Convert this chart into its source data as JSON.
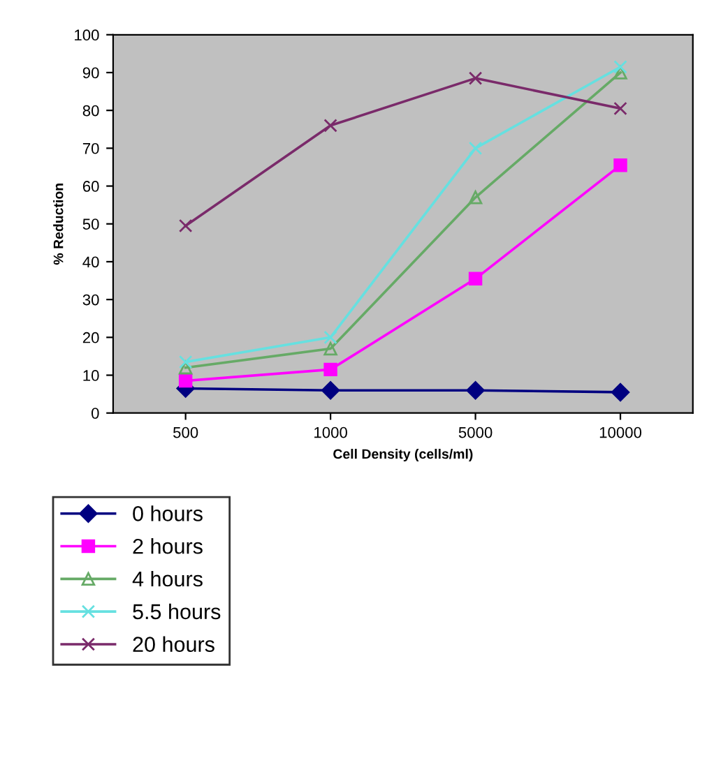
{
  "chart_data": {
    "type": "line",
    "xlabel": "Cell Density (cells/ml)",
    "ylabel": "% Reduction",
    "categories": [
      "500",
      "1000",
      "5000",
      "10000"
    ],
    "ylim": [
      0,
      100
    ],
    "yticks": [
      0,
      10,
      20,
      30,
      40,
      50,
      60,
      70,
      80,
      90,
      100
    ],
    "grid": false,
    "legend": "bottom left",
    "series": [
      {
        "name": "0 hours",
        "color": "#000080",
        "marker": "diamond",
        "values": [
          6.5,
          6,
          6,
          5.5
        ]
      },
      {
        "name": "2 hours",
        "color": "#ff00ff",
        "marker": "square",
        "values": [
          8.5,
          11.5,
          35.5,
          65.5
        ]
      },
      {
        "name": "4 hours",
        "color": "#66aa66",
        "marker": "triangle",
        "values": [
          12,
          17,
          57,
          90
        ]
      },
      {
        "name": "5.5 hours",
        "color": "#66e0e0",
        "marker": "cross",
        "values": [
          13.5,
          20,
          70,
          91.5
        ]
      },
      {
        "name": "20 hours",
        "color": "#7a2a6a",
        "marker": "cross",
        "values": [
          49.5,
          76,
          88.5,
          80.5
        ]
      }
    ]
  }
}
